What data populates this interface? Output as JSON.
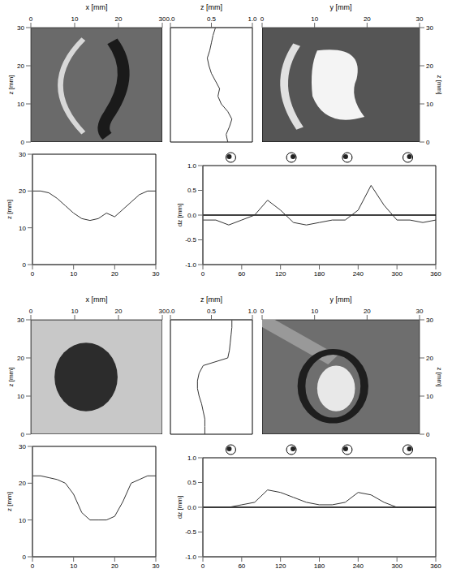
{
  "chart_data": [
    {
      "type": "image",
      "x_label": "x [mm]",
      "y_label": "z [mm]",
      "xlim": [
        0,
        30
      ],
      "xticks": [
        0,
        10,
        20,
        30
      ],
      "ylim": [
        0,
        30
      ],
      "yticks": [
        0,
        10,
        20,
        30
      ]
    },
    {
      "type": "line",
      "orientation": "horizontal",
      "x_label": "z [mm]",
      "x": [
        0,
        2,
        4,
        6,
        8,
        10,
        12,
        14,
        16,
        18,
        20,
        22,
        24,
        26,
        28,
        30
      ],
      "values": [
        0.55,
        0.52,
        0.5,
        0.48,
        0.45,
        0.47,
        0.5,
        0.55,
        0.6,
        0.58,
        0.62,
        0.7,
        0.75,
        0.72,
        0.68,
        0.7
      ],
      "xlim": [
        0,
        30
      ],
      "ylim": [
        0,
        1
      ],
      "yticks": [
        {
          "value": 0,
          "label": "0.0"
        },
        {
          "value": 0.5,
          "label": "0.5"
        },
        {
          "value": 1,
          "label": "1.0"
        }
      ],
      "tick_labels": "y"
    },
    {
      "type": "image",
      "x_label": "y [mm]",
      "y_label": "z [mm]",
      "xlim": [
        0,
        30
      ],
      "xticks": [
        0,
        10,
        20,
        30
      ],
      "ylim": [
        0,
        30
      ],
      "yticks": [
        0,
        10,
        20,
        30
      ]
    },
    {
      "type": "line",
      "y_label": "z [mm]",
      "x": [
        0,
        2,
        4,
        6,
        8,
        10,
        12,
        14,
        16,
        18,
        20,
        22,
        24,
        26,
        28,
        30
      ],
      "values": [
        20,
        20,
        19.5,
        18,
        16,
        14,
        12.5,
        12,
        12.5,
        14,
        13,
        15,
        17,
        19,
        20,
        20
      ],
      "xlim": [
        0,
        30
      ],
      "xticks": [
        0,
        10,
        20,
        30
      ],
      "ylim": [
        0,
        30
      ],
      "yticks": [
        0,
        10,
        20,
        30
      ]
    },
    {
      "type": "line",
      "y_label": "dz [mm]",
      "x": [
        0,
        20,
        40,
        60,
        80,
        100,
        120,
        140,
        160,
        180,
        200,
        220,
        240,
        260,
        280,
        300,
        320,
        340,
        360
      ],
      "values": [
        -0.1,
        -0.1,
        -0.2,
        -0.1,
        0.0,
        0.3,
        0.1,
        -0.15,
        -0.2,
        -0.15,
        -0.1,
        -0.1,
        0.1,
        0.6,
        0.2,
        -0.1,
        -0.1,
        -0.15,
        -0.1
      ],
      "hline": 0,
      "xlim": [
        0,
        360
      ],
      "xticks": [
        0,
        60,
        120,
        180,
        240,
        300,
        360
      ],
      "ylim": [
        -1,
        1
      ],
      "yticks": [
        {
          "value": -1,
          "label": "-1.0"
        },
        {
          "value": -0.5,
          "label": "-0.5"
        },
        {
          "value": 0,
          "label": "0.0"
        },
        {
          "value": 0.5,
          "label": "0.5"
        },
        {
          "value": 1,
          "label": "1.0"
        }
      ]
    },
    {
      "type": "image",
      "x_label": "x [mm]",
      "y_label": "z [mm]",
      "xlim": [
        0,
        30
      ],
      "xticks": [
        0,
        10,
        20,
        30
      ],
      "ylim": [
        0,
        30
      ],
      "yticks": [
        0,
        10,
        20,
        30
      ]
    },
    {
      "type": "line",
      "orientation": "horizontal",
      "x_label": "z [mm]",
      "x": [
        0,
        2,
        4,
        6,
        8,
        10,
        12,
        14,
        16,
        18,
        20,
        22,
        24,
        26,
        28,
        30
      ],
      "values": [
        0.75,
        0.75,
        0.74,
        0.73,
        0.72,
        0.7,
        0.4,
        0.35,
        0.33,
        0.33,
        0.35,
        0.38,
        0.4,
        0.42,
        0.42,
        0.42
      ],
      "xlim": [
        0,
        30
      ],
      "ylim": [
        0,
        1
      ],
      "yticks": [
        {
          "value": 0,
          "label": "0.0"
        },
        {
          "value": 0.5,
          "label": "0.5"
        },
        {
          "value": 1,
          "label": "1.0"
        }
      ],
      "tick_labels": "y"
    },
    {
      "type": "image",
      "x_label": "y [mm]",
      "y_label": "z [mm]",
      "xlim": [
        0,
        30
      ],
      "xticks": [
        0,
        10,
        20,
        30
      ],
      "ylim": [
        0,
        30
      ],
      "yticks": [
        0,
        10,
        20,
        30
      ]
    },
    {
      "type": "line",
      "y_label": "z [mm]",
      "x": [
        0,
        2,
        4,
        6,
        8,
        10,
        12,
        14,
        16,
        18,
        20,
        22,
        24,
        26,
        28,
        30
      ],
      "values": [
        22,
        22,
        21.5,
        21,
        20,
        17,
        12,
        10,
        10,
        10,
        11,
        15,
        20,
        21,
        22,
        22
      ],
      "xlim": [
        0,
        30
      ],
      "xticks": [
        0,
        10,
        20,
        30
      ],
      "ylim": [
        0,
        30
      ],
      "yticks": [
        0,
        10,
        20,
        30
      ]
    },
    {
      "type": "line",
      "y_label": "dz [mm]",
      "x": [
        0,
        20,
        40,
        60,
        80,
        100,
        120,
        140,
        160,
        180,
        200,
        220,
        240,
        260,
        280,
        300,
        320,
        340,
        360
      ],
      "values": [
        0,
        0,
        0,
        0.05,
        0.1,
        0.35,
        0.3,
        0.2,
        0.1,
        0.05,
        0.05,
        0.1,
        0.3,
        0.25,
        0.1,
        0,
        0,
        0,
        0
      ],
      "hline": 0,
      "xlim": [
        0,
        360
      ],
      "xticks": [
        0,
        60,
        120,
        180,
        240,
        300,
        360
      ],
      "ylim": [
        -1,
        1
      ],
      "yticks": [
        {
          "value": -1,
          "label": "-1.0"
        },
        {
          "value": -0.5,
          "label": "-0.5"
        },
        {
          "value": 0,
          "label": "0.0"
        },
        {
          "value": 0.5,
          "label": "0.5"
        },
        {
          "value": 1,
          "label": "1.0"
        }
      ]
    }
  ]
}
